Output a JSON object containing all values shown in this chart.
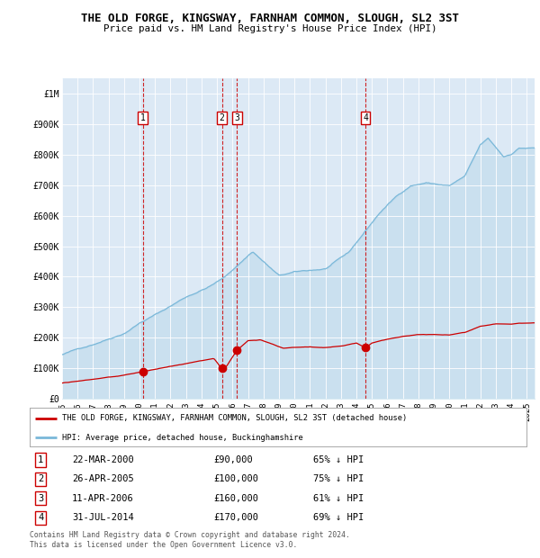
{
  "title": "THE OLD FORGE, KINGSWAY, FARNHAM COMMON, SLOUGH, SL2 3ST",
  "subtitle": "Price paid vs. HM Land Registry's House Price Index (HPI)",
  "plot_bg_color": "#dce9f5",
  "hpi_color": "#7ab8d9",
  "price_color": "#cc0000",
  "vline_color": "#cc0000",
  "ylim": [
    0,
    1050000
  ],
  "xlim_start": 1995.0,
  "xlim_end": 2025.5,
  "yticks": [
    0,
    100000,
    200000,
    300000,
    400000,
    500000,
    600000,
    700000,
    800000,
    900000,
    1000000
  ],
  "ytick_labels": [
    "£0",
    "£100K",
    "£200K",
    "£300K",
    "£400K",
    "£500K",
    "£600K",
    "£700K",
    "£800K",
    "£900K",
    "£1M"
  ],
  "xticks": [
    1995,
    1996,
    1997,
    1998,
    1999,
    2000,
    2001,
    2002,
    2003,
    2004,
    2005,
    2006,
    2007,
    2008,
    2009,
    2010,
    2011,
    2012,
    2013,
    2014,
    2015,
    2016,
    2017,
    2018,
    2019,
    2020,
    2021,
    2022,
    2023,
    2024,
    2025
  ],
  "xtick_labels": [
    "1995",
    "1996",
    "1997",
    "1998",
    "1999",
    "2000",
    "2001",
    "2002",
    "2003",
    "2004",
    "2005",
    "2006",
    "2007",
    "2008",
    "2009",
    "2010",
    "2011",
    "2012",
    "2013",
    "2014",
    "2015",
    "2016",
    "2017",
    "2018",
    "2019",
    "2020",
    "2021",
    "2022",
    "2023",
    "2024",
    "2025"
  ],
  "sales": [
    {
      "id": 1,
      "date": "22-MAR-2000",
      "year": 2000.22,
      "price": 90000,
      "pct": "65%",
      "direction": "↓"
    },
    {
      "id": 2,
      "date": "26-APR-2005",
      "year": 2005.32,
      "price": 100000,
      "pct": "75%",
      "direction": "↓"
    },
    {
      "id": 3,
      "date": "11-APR-2006",
      "year": 2006.28,
      "price": 160000,
      "pct": "61%",
      "direction": "↓"
    },
    {
      "id": 4,
      "date": "31-JUL-2014",
      "year": 2014.58,
      "price": 170000,
      "pct": "69%",
      "direction": "↓"
    }
  ],
  "legend_property_label": "THE OLD FORGE, KINGSWAY, FARNHAM COMMON, SLOUGH, SL2 3ST (detached house)",
  "legend_hpi_label": "HPI: Average price, detached house, Buckinghamshire",
  "footer": "Contains HM Land Registry data © Crown copyright and database right 2024.\nThis data is licensed under the Open Government Licence v3.0."
}
